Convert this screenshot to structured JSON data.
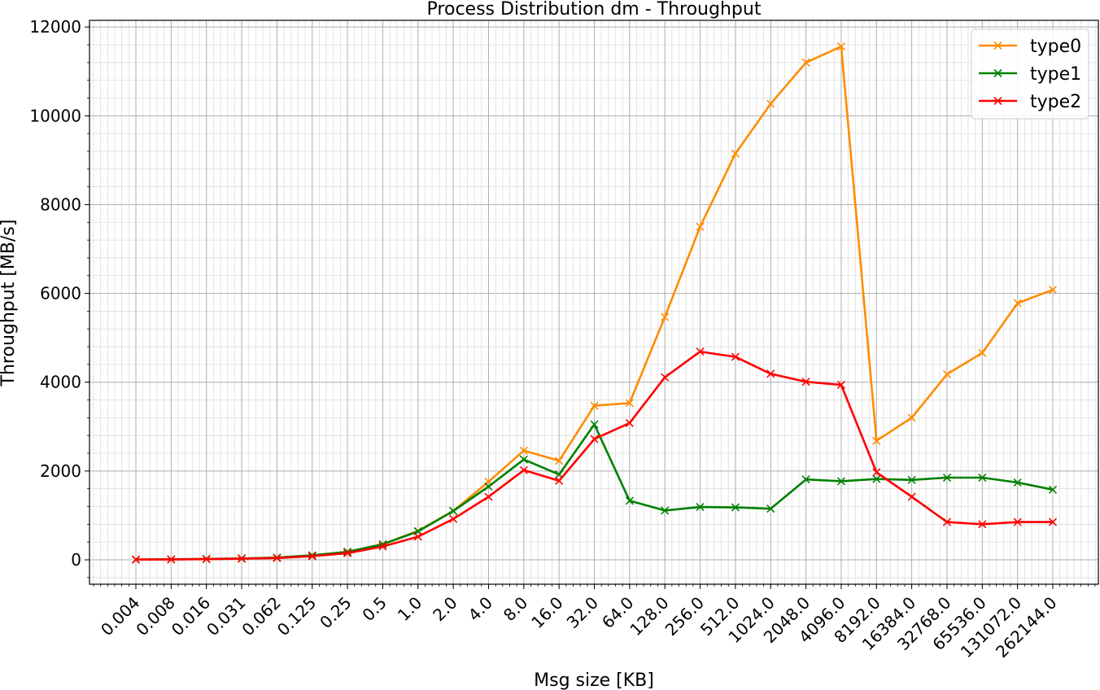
{
  "chart_data": {
    "type": "line",
    "title": "Process Distribution dm - Throughput",
    "xlabel": "Msg size [KB]",
    "ylabel": "Throughput [MB/s]",
    "x": [
      "0.004",
      "0.008",
      "0.016",
      "0.031",
      "0.062",
      "0.125",
      "0.25",
      "0.5",
      "1.0",
      "2.0",
      "4.0",
      "8.0",
      "16.0",
      "32.0",
      "64.0",
      "128.0",
      "256.0",
      "512.0",
      "1024.0",
      "2048.0",
      "4096.0",
      "8192.0",
      "16384.0",
      "32768.0",
      "65536.0",
      "131072.0",
      "262144.0"
    ],
    "y_ticks": [
      "0",
      "2000",
      "4000",
      "6000",
      "8000",
      "10000",
      "12000"
    ],
    "ylim": [
      -550,
      12150
    ],
    "grid": true,
    "legend_position": "top-right",
    "series": [
      {
        "name": "type0",
        "color": "#ff8c00",
        "values": [
          5,
          10,
          20,
          30,
          50,
          100,
          180,
          350,
          650,
          1100,
          1760,
          2460,
          2230,
          3470,
          3530,
          5470,
          7500,
          9150,
          10270,
          11200,
          11560,
          2680,
          3200,
          4180,
          4660,
          5780,
          6080
        ]
      },
      {
        "name": "type1",
        "color": "#008000",
        "values": [
          5,
          10,
          20,
          30,
          50,
          100,
          180,
          350,
          640,
          1100,
          1650,
          2260,
          1920,
          3050,
          1330,
          1110,
          1190,
          1180,
          1150,
          1810,
          1770,
          1820,
          1800,
          1850,
          1850,
          1740,
          1580
        ]
      },
      {
        "name": "type2",
        "color": "#ff0000",
        "values": [
          5,
          8,
          15,
          25,
          40,
          80,
          150,
          300,
          520,
          920,
          1420,
          2020,
          1780,
          2720,
          3080,
          4110,
          4690,
          4570,
          4190,
          4010,
          3940,
          1970,
          1420,
          850,
          800,
          850,
          850
        ]
      }
    ]
  }
}
